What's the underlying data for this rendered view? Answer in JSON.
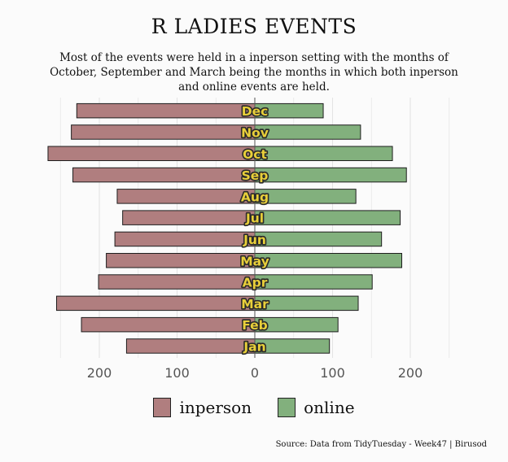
{
  "title": "R LADIES EVENTS",
  "subtitle": "Most of the events were held in a inperson setting with the months of October, September and March being the months in which both inperson and online events are held.",
  "source": "Source: Data from TidyTuesday - Week47 | Birusod",
  "colors": {
    "inperson": "#b07e7f",
    "online": "#82b07d",
    "label_fill": "#e8cf3a",
    "label_stroke": "#2a2a2a",
    "background": "#fbfbfb"
  },
  "chart_data": {
    "type": "bar",
    "orientation": "horizontal-diverging",
    "categories": [
      "Dec",
      "Nov",
      "Oct",
      "Sep",
      "Aug",
      "Jul",
      "Jun",
      "May",
      "Apr",
      "Mar",
      "Feb",
      "Jan"
    ],
    "series": [
      {
        "name": "inperson",
        "values": [
          229,
          236,
          266,
          234,
          177,
          170,
          180,
          191,
          201,
          255,
          223,
          165
        ]
      },
      {
        "name": "online",
        "values": [
          88,
          136,
          177,
          195,
          130,
          187,
          163,
          189,
          151,
          133,
          107,
          96
        ]
      }
    ],
    "xticks": [
      -200,
      -100,
      0,
      100,
      200
    ],
    "xtick_labels": [
      "200",
      "100",
      "0",
      "100",
      "200"
    ],
    "xlim": [
      -270,
      250
    ],
    "grid": true,
    "legend_position": "bottom"
  }
}
